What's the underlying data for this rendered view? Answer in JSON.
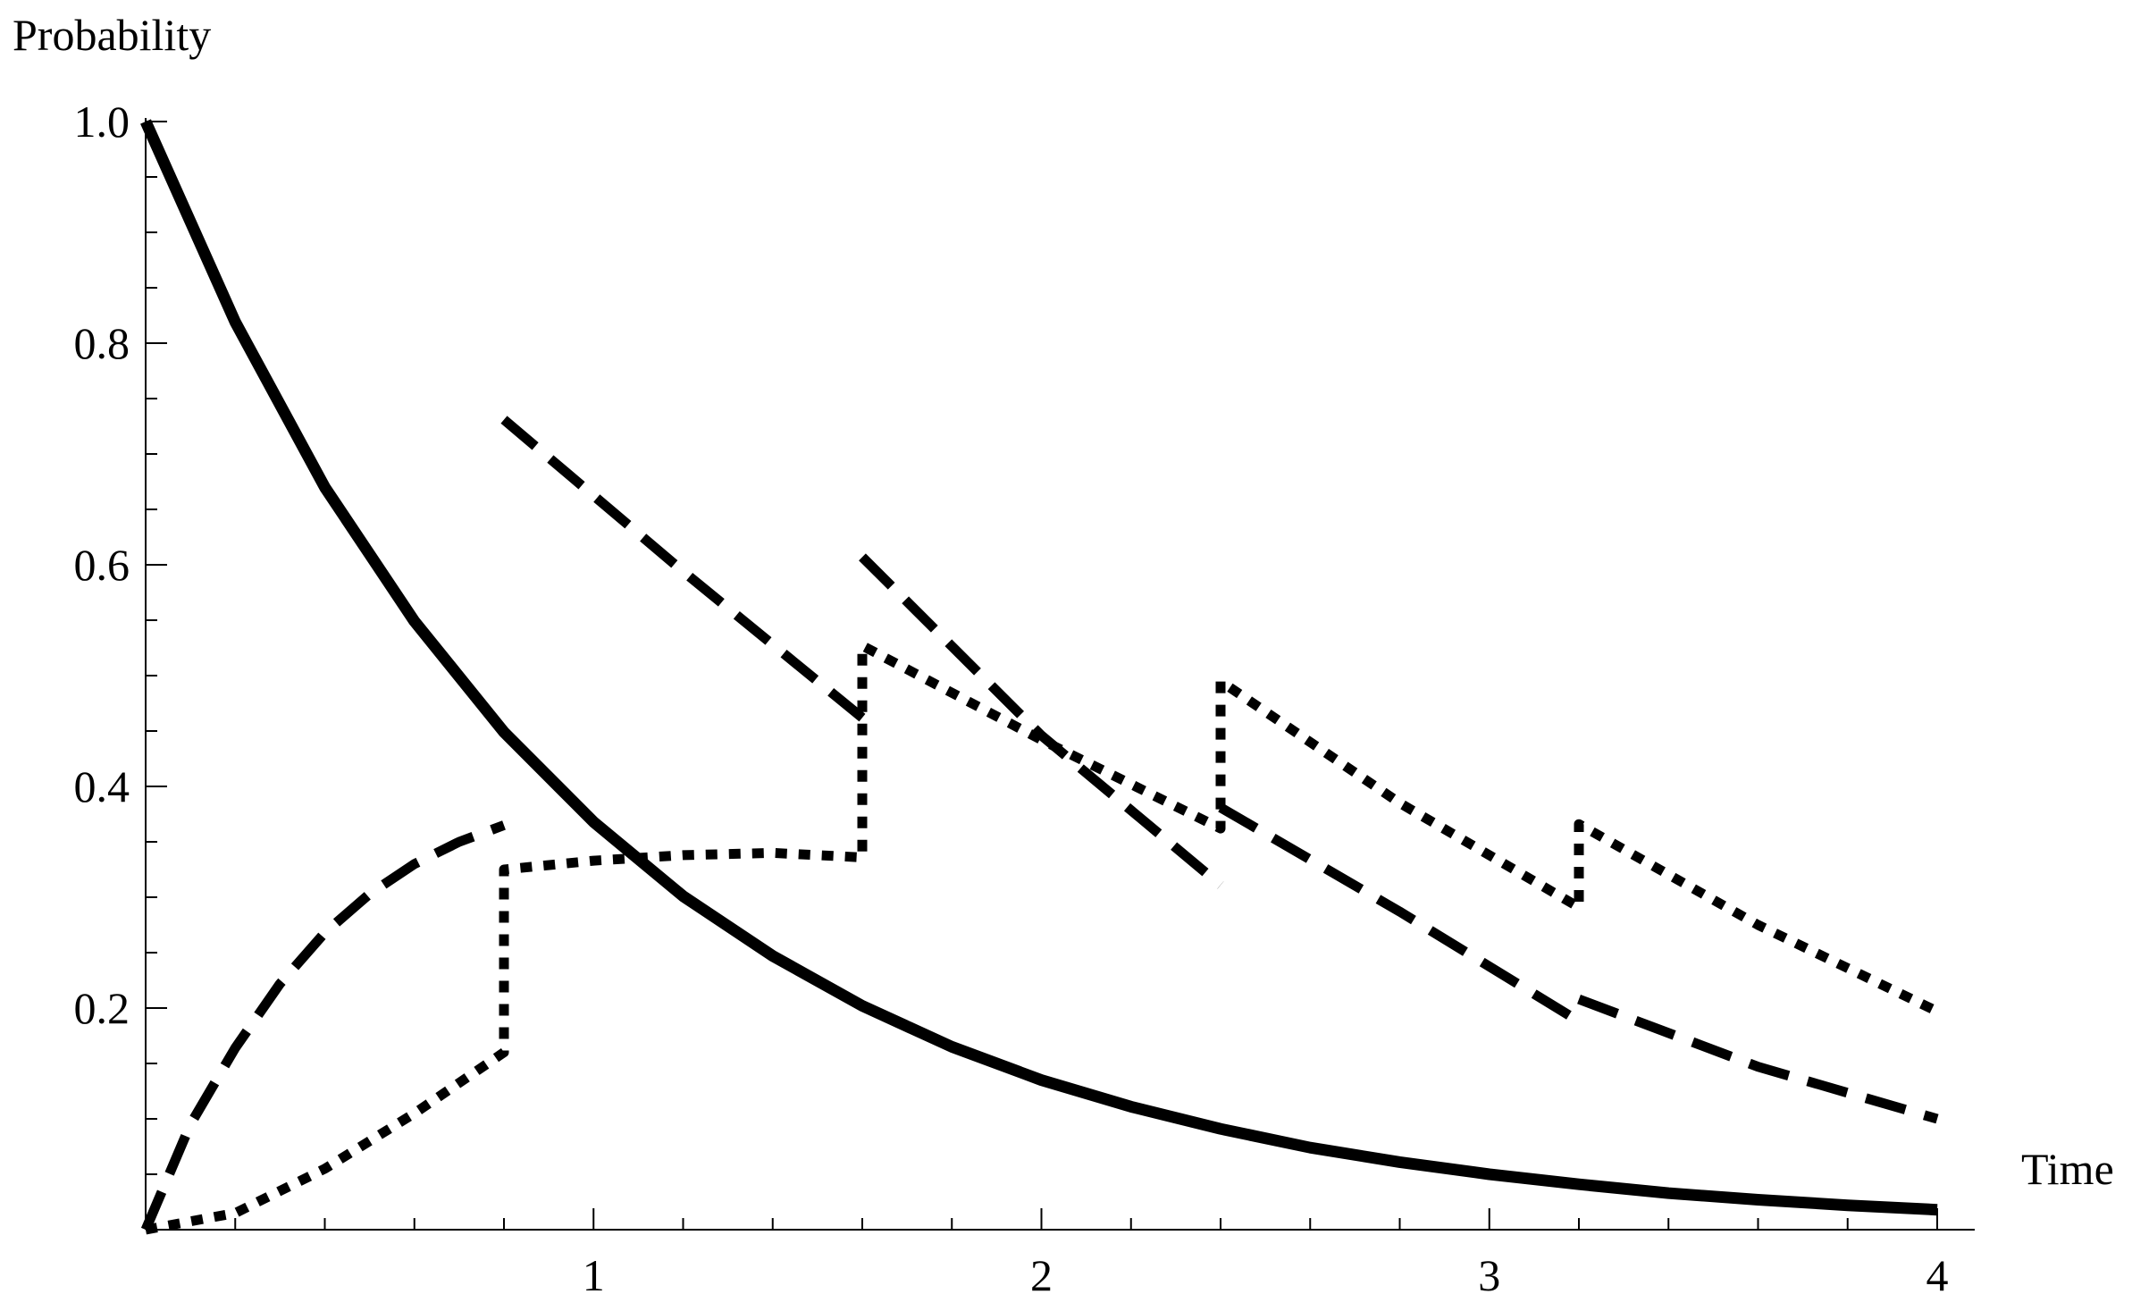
{
  "chart_data": {
    "type": "line",
    "xlabel": "Time",
    "ylabel": "Probability",
    "xlim": [
      0,
      4
    ],
    "ylim": [
      0,
      1.0
    ],
    "x_ticks": [
      {
        "value": 1,
        "label": "1"
      },
      {
        "value": 2,
        "label": "2"
      },
      {
        "value": 3,
        "label": "3"
      },
      {
        "value": 4,
        "label": "4"
      }
    ],
    "y_ticks": [
      {
        "value": 0.2,
        "label": "0.2"
      },
      {
        "value": 0.4,
        "label": "0.4"
      },
      {
        "value": 0.6,
        "label": "0.6"
      },
      {
        "value": 0.8,
        "label": "0.8"
      },
      {
        "value": 1.0,
        "label": "1.0"
      }
    ],
    "grid": false,
    "legend": "none",
    "series": [
      {
        "style": "solid",
        "color": "#000000",
        "points": [
          [
            0,
            1.0
          ],
          [
            0.2,
            0.819
          ],
          [
            0.4,
            0.67
          ],
          [
            0.6,
            0.549
          ],
          [
            0.8,
            0.449
          ],
          [
            1.0,
            0.368
          ],
          [
            1.2,
            0.301
          ],
          [
            1.4,
            0.247
          ],
          [
            1.6,
            0.202
          ],
          [
            1.8,
            0.165
          ],
          [
            2.0,
            0.135
          ],
          [
            2.2,
            0.111
          ],
          [
            2.4,
            0.091
          ],
          [
            2.6,
            0.074
          ],
          [
            2.8,
            0.061
          ],
          [
            3.0,
            0.05
          ],
          [
            3.2,
            0.041
          ],
          [
            3.4,
            0.033
          ],
          [
            3.6,
            0.027
          ],
          [
            3.8,
            0.022
          ],
          [
            4.0,
            0.018
          ]
        ]
      },
      {
        "style": "dashed",
        "color": "#000000",
        "segments": [
          [
            [
              0,
              0.0
            ],
            [
              0.1,
              0.095
            ],
            [
              0.2,
              0.164
            ],
            [
              0.3,
              0.222
            ],
            [
              0.4,
              0.268
            ],
            [
              0.5,
              0.303
            ],
            [
              0.6,
              0.33
            ],
            [
              0.7,
              0.35
            ],
            [
              0.8,
              0.365
            ]
          ],
          [
            [
              0.8,
              0.731
            ],
            [
              1.2,
              0.594
            ],
            [
              1.6,
              0.462
            ]
          ],
          [
            [
              1.6,
              0.607
            ],
            [
              2.0,
              0.446
            ],
            [
              2.4,
              0.311
            ]
          ],
          [
            [
              2.4,
              0.381
            ],
            [
              2.8,
              0.287
            ],
            [
              3.2,
              0.188
            ]
          ],
          [
            [
              3.2,
              0.208
            ],
            [
              3.6,
              0.147
            ],
            [
              4.0,
              0.1
            ]
          ]
        ]
      },
      {
        "style": "dotted",
        "color": "#000000",
        "segments": [
          [
            [
              0,
              0.0
            ],
            [
              0.2,
              0.015
            ],
            [
              0.4,
              0.055
            ],
            [
              0.6,
              0.105
            ],
            [
              0.8,
              0.16
            ],
            [
              0.8,
              0.325
            ],
            [
              1.0,
              0.333
            ],
            [
              1.2,
              0.338
            ],
            [
              1.4,
              0.34
            ],
            [
              1.6,
              0.336
            ],
            [
              1.6,
              0.527
            ],
            [
              2.0,
              0.442
            ],
            [
              2.4,
              0.362
            ],
            [
              2.4,
              0.495
            ],
            [
              2.8,
              0.385
            ],
            [
              3.2,
              0.291
            ],
            [
              3.2,
              0.366
            ],
            [
              3.6,
              0.275
            ],
            [
              4.0,
              0.197
            ]
          ]
        ]
      }
    ]
  }
}
